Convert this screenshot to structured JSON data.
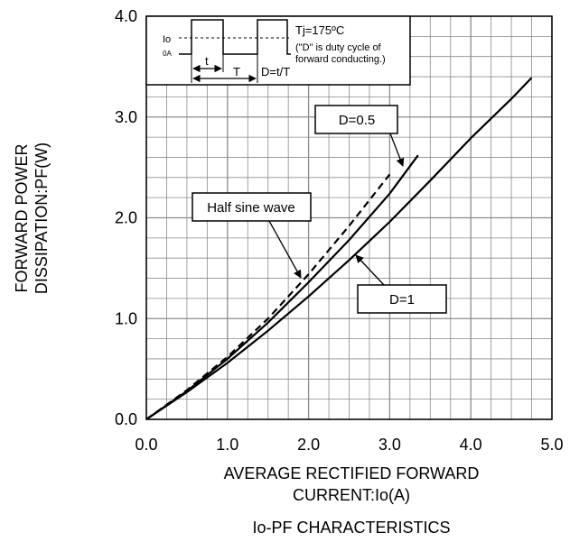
{
  "chart_data": {
    "type": "line",
    "title": "Io-PF CHARACTERISTICS",
    "xlabel_line1": "AVERAGE RECTIFIED FORWARD",
    "xlabel_line2": "CURRENT:Io(A)",
    "ylabel_line1": "FORWARD POWER",
    "ylabel_line2": "DISSIPATION:PF(W)",
    "xlim": [
      0,
      5
    ],
    "ylim": [
      0,
      4
    ],
    "x_ticks": [
      "0.0",
      "1.0",
      "2.0",
      "3.0",
      "4.0",
      "5.0"
    ],
    "y_ticks": [
      "0.0",
      "1.0",
      "2.0",
      "3.0",
      "4.0"
    ],
    "grid": true,
    "series": [
      {
        "name": "D=1",
        "style": "solid",
        "x": [
          0,
          0.5,
          1.0,
          1.5,
          2.0,
          2.5,
          3.0,
          3.5,
          4.0,
          4.5,
          4.75
        ],
        "y": [
          0,
          0.27,
          0.56,
          0.88,
          1.22,
          1.58,
          1.96,
          2.37,
          2.79,
          3.18,
          3.39
        ]
      },
      {
        "name": "D=0.5",
        "style": "solid",
        "x": [
          0,
          0.5,
          1.0,
          1.5,
          2.0,
          2.5,
          3.0,
          3.35
        ],
        "y": [
          0,
          0.28,
          0.6,
          0.96,
          1.36,
          1.78,
          2.24,
          2.62
        ]
      },
      {
        "name": "Half sine wave",
        "style": "dashed",
        "x": [
          0,
          0.5,
          1.0,
          1.5,
          2.0,
          2.5,
          3.0
        ],
        "y": [
          0,
          0.29,
          0.62,
          1.0,
          1.44,
          1.92,
          2.43
        ]
      }
    ],
    "annotations": {
      "half_sine": "Half sine wave",
      "d05": "D=0.5",
      "d1": "D=1"
    },
    "inset": {
      "tj": "Tj=175ºC",
      "note1": "(\"D\" is duty cycle of",
      "note2": "forward conducting.)",
      "io": "Io",
      "zero": "0A",
      "t": "t",
      "T": "T",
      "d_eq": "D=t/T"
    }
  }
}
